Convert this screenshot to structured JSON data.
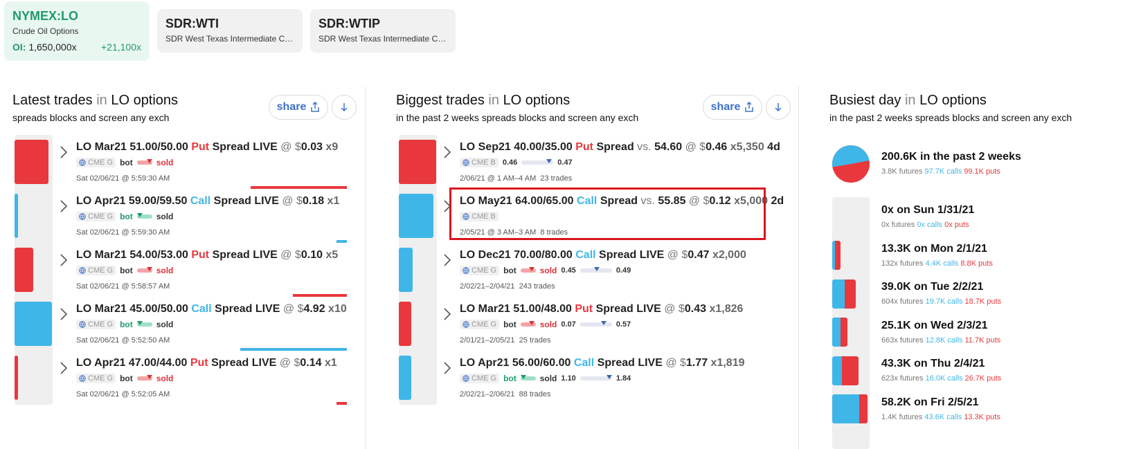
{
  "symbols": [
    {
      "title": "NYMEX:LO",
      "subtitle": "Crude Oil Options",
      "oi_label": "OI:",
      "oi_value": "1,650,000x",
      "oi_change": "+21,100x"
    },
    {
      "title": "SDR:WTI",
      "subtitle": "SDR West Texas Intermediate Crud..."
    },
    {
      "title": "SDR:WTIP",
      "subtitle": "SDR West Texas Intermediate Crud..."
    }
  ],
  "latest": {
    "title": "Latest trades",
    "in": "in",
    "product": "LO options",
    "subtitle": "spreads blocks and screen any exch",
    "share_label": "share",
    "trades": [
      {
        "name": "LO Mar21 51.00/50.00",
        "type": "Put",
        "kind": "Spread LIVE",
        "at": "@",
        "dollar": "$",
        "price": "0.03",
        "size": "x9",
        "exch": "CME G",
        "bot": "bot",
        "sold": "sold",
        "time": "Sat 02/06/21 @ 5:59:30 AM",
        "side": "put"
      },
      {
        "name": "LO Apr21 59.00/59.50",
        "type": "Call",
        "kind": "Spread LIVE",
        "at": "@",
        "dollar": "$",
        "price": "0.18",
        "size": "x1",
        "exch": "CME G",
        "bot": "bot",
        "sold": "sold",
        "time": "Sat 02/06/21 @ 5:59:30 AM",
        "side": "call"
      },
      {
        "name": "LO Mar21 54.00/53.00",
        "type": "Put",
        "kind": "Spread LIVE",
        "at": "@",
        "dollar": "$",
        "price": "0.10",
        "size": "x5",
        "exch": "CME G",
        "bot": "bot",
        "sold": "sold",
        "time": "Sat 02/06/21 @ 5:58:57 AM",
        "side": "put"
      },
      {
        "name": "LO Mar21 45.00/50.00",
        "type": "Call",
        "kind": "Spread LIVE",
        "at": "@",
        "dollar": "$",
        "price": "4.92",
        "size": "x10",
        "exch": "CME G",
        "bot": "bot",
        "sold": "sold",
        "time": "Sat 02/06/21 @ 5:52:50 AM",
        "side": "call"
      },
      {
        "name": "LO Apr21 47.00/44.00",
        "type": "Put",
        "kind": "Spread LIVE",
        "at": "@",
        "dollar": "$",
        "price": "0.14",
        "size": "x1",
        "exch": "CME G",
        "bot": "bot",
        "sold": "sold",
        "time": "Sat 02/06/21 @ 5:52:05 AM",
        "side": "put"
      }
    ]
  },
  "biggest": {
    "title": "Biggest trades",
    "in": "in",
    "product": "LO options",
    "subtitle": "in the past 2 weeks spreads blocks and screen any exch",
    "share_label": "share",
    "trades": [
      {
        "name": "LO Sep21 40.00/35.00",
        "type": "Put",
        "kind": "Spread",
        "vs": "vs.",
        "vs_val": "54.60",
        "at": "@",
        "dollar": "$",
        "price": "0.46",
        "size": "x5,350",
        "age": "4d",
        "exch": "CME B",
        "lo": "0.46",
        "hi": "0.47",
        "time": "2/06/21 @ 1 AM–4 AM",
        "trades": "23 trades"
      },
      {
        "name": "LO May21 64.00/65.00",
        "type": "Call",
        "kind": "Spread",
        "vs": "vs.",
        "vs_val": "55.85",
        "at": "@",
        "dollar": "$",
        "price": "0.12",
        "size": "x5,000",
        "age": "2d",
        "exch": "CME B",
        "time": "2/05/21 @ 3 AM–3 AM",
        "trades": "8 trades"
      },
      {
        "name": "LO Dec21 70.00/80.00",
        "type": "Call",
        "kind": "Spread LIVE",
        "at": "@",
        "dollar": "$",
        "price": "0.47",
        "size": "x2,000",
        "exch": "CME G",
        "bot": "bot",
        "sold": "sold",
        "lo": "0.45",
        "hi": "0.49",
        "time": "2/02/21–2/04/21",
        "trades": "243 trades"
      },
      {
        "name": "LO Mar21 51.00/48.00",
        "type": "Put",
        "kind": "Spread LIVE",
        "at": "@",
        "dollar": "$",
        "price": "0.43",
        "size": "x1,826",
        "exch": "CME G",
        "bot": "bot",
        "sold": "sold",
        "lo": "0.07",
        "hi": "0.57",
        "time": "2/01/21–2/05/21",
        "trades": "25 trades"
      },
      {
        "name": "LO Apr21 56.00/60.00",
        "type": "Call",
        "kind": "Spread LIVE",
        "at": "@",
        "dollar": "$",
        "price": "1.77",
        "size": "x1,819",
        "exch": "CME G",
        "bot": "bot",
        "sold": "sold",
        "lo": "1.10",
        "hi": "1.84",
        "time": "2/02/21–2/06/21",
        "trades": "88 trades"
      }
    ]
  },
  "busiest": {
    "title": "Busiest day",
    "in": "in",
    "product": "LO options",
    "subtitle": "in the past 2 weeks spreads blocks and screen any exch",
    "summary": {
      "title": "200.6K in the past 2 weeks",
      "futures": "3.8K futures",
      "calls": "97.7K calls",
      "puts": "99.1K puts",
      "call_fraction": 0.496
    },
    "days": [
      {
        "title": "0x on Sun 1/31/21",
        "futures": "0x futures",
        "calls": "0x calls",
        "puts": "0x puts",
        "calls_k": 0,
        "puts_k": 0
      },
      {
        "title": "13.3K on Mon 2/1/21",
        "futures": "132x futures",
        "calls": "4.4K calls",
        "puts": "8.8K puts",
        "calls_k": 4.4,
        "puts_k": 8.8
      },
      {
        "title": "39.0K on Tue 2/2/21",
        "futures": "604x futures",
        "calls": "19.7K calls",
        "puts": "18.7K puts",
        "calls_k": 19.7,
        "puts_k": 18.7
      },
      {
        "title": "25.1K on Wed 2/3/21",
        "futures": "663x futures",
        "calls": "12.8K calls",
        "puts": "11.7K puts",
        "calls_k": 12.8,
        "puts_k": 11.7
      },
      {
        "title": "43.3K on Thu 2/4/21",
        "futures": "623x futures",
        "calls": "16.0K calls",
        "puts": "26.7K puts",
        "calls_k": 16.0,
        "puts_k": 26.7
      },
      {
        "title": "58.2K on Fri 2/5/21",
        "futures": "1.4K futures",
        "calls": "43.6K calls",
        "puts": "13.3K puts",
        "calls_k": 43.6,
        "puts_k": 13.3
      }
    ]
  },
  "colors": {
    "put": "#e8383d",
    "call": "#3fb6e8",
    "accent_green": "#1f9a6b",
    "link_blue": "#3d72c9",
    "highlight": "#d9161c"
  }
}
